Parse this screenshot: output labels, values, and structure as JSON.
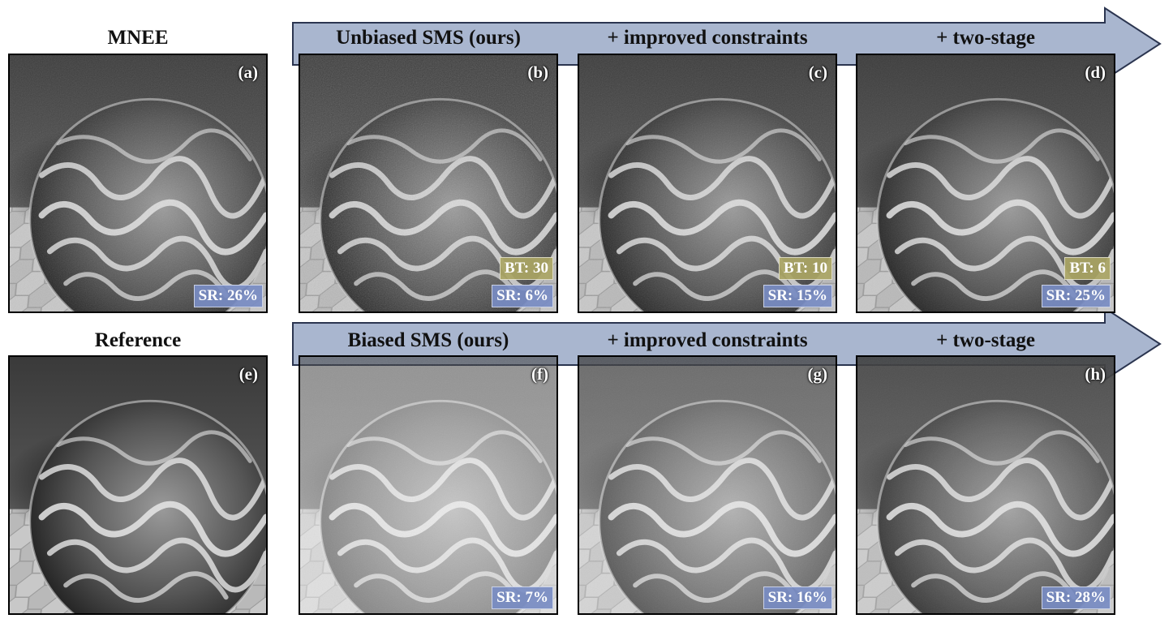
{
  "columns": {
    "left_top": "MNEE",
    "left_bottom": "Reference"
  },
  "rows": [
    {
      "stages": [
        "Unbiased SMS (ours)",
        "+ improved constraints",
        "+ two-stage"
      ]
    },
    {
      "stages": [
        "Biased SMS (ours)",
        "+ improved constraints",
        "+ two-stage"
      ]
    }
  ],
  "panels": {
    "a": {
      "tag": "(a)",
      "sr": "SR: 26%"
    },
    "b": {
      "tag": "(b)",
      "bt": "BT: 30",
      "sr": "SR: 6%"
    },
    "c": {
      "tag": "(c)",
      "bt": "BT: 10",
      "sr": "SR: 15%"
    },
    "d": {
      "tag": "(d)",
      "bt": "BT: 6",
      "sr": "SR: 25%"
    },
    "e": {
      "tag": "(e)"
    },
    "f": {
      "tag": "(f)",
      "sr": "SR: 7%"
    },
    "g": {
      "tag": "(g)",
      "sr": "SR: 16%"
    },
    "h": {
      "tag": "(h)",
      "sr": "SR: 28%"
    }
  },
  "colors": {
    "arrow_fill": "#a9b6cf",
    "sr_badge": "#7b8cc3",
    "bt_badge": "#aaa564"
  }
}
